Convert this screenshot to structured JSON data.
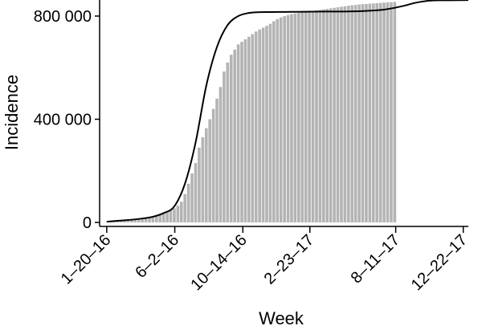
{
  "chart_data": {
    "type": "bar",
    "title": "",
    "xlabel": "Week",
    "ylabel": "Incidence",
    "xlim": [
      "2016-01-06",
      "2018-01-01"
    ],
    "ylim": [
      0,
      860000
    ],
    "x_tick_labels": [
      "1–20–16",
      "6–2–16",
      "10–14–16",
      "2–23–17",
      "8–11–17",
      "12–22–17"
    ],
    "x_tick_dates": [
      "2016-01-20",
      "2016-06-02",
      "2016-10-14",
      "2017-02-23",
      "2017-08-11",
      "2017-12-22"
    ],
    "y_tick_labels": [
      "0",
      "400 000",
      "800 000"
    ],
    "y_tick_values": [
      0,
      400000,
      800000
    ],
    "grid": false,
    "legend": "none",
    "bar_color": "#b4b4b4",
    "line_color": "#000000",
    "series": [
      {
        "type": "bar",
        "x_start": "2016-01-20",
        "x_interval_days": 7,
        "values": [
          1000,
          2000,
          3000,
          4000,
          5000,
          6000,
          7000,
          8000,
          9000,
          11000,
          13000,
          16000,
          19000,
          23000,
          27000,
          30000,
          35000,
          42000,
          50000,
          55000,
          65000,
          80000,
          110000,
          150000,
          190000,
          230000,
          290000,
          330000,
          365000,
          400000,
          440000,
          480000,
          525000,
          585000,
          620000,
          650000,
          670000,
          690000,
          700000,
          710000,
          720000,
          730000,
          740000,
          748000,
          755000,
          762000,
          770000,
          780000,
          788000,
          795000,
          800000,
          804000,
          808000,
          810000,
          812000,
          814000,
          816000,
          818000,
          820000,
          822000,
          824000,
          826000,
          828000,
          830000,
          832000,
          834000,
          836000,
          838000,
          840000,
          842000,
          843000,
          845000,
          846000,
          847000,
          848000,
          849000,
          850000,
          851000,
          852000,
          853000,
          854000,
          855000
        ]
      },
      {
        "type": "line",
        "x": [
          "2016-01-20",
          "2016-02-24",
          "2016-03-30",
          "2016-04-20",
          "2016-05-11",
          "2016-06-01",
          "2016-06-22",
          "2016-07-13",
          "2016-08-03",
          "2016-08-24",
          "2016-09-14",
          "2016-10-05",
          "2016-10-26",
          "2016-11-16",
          "2016-12-07",
          "2017-01-04",
          "2017-02-01",
          "2017-03-01",
          "2017-04-05",
          "2017-05-10",
          "2017-06-14",
          "2017-07-19",
          "2017-08-23",
          "2017-09-20",
          "2017-10-18",
          "2017-11-15",
          "2017-12-13",
          "2018-01-01"
        ],
        "y": [
          3000,
          8000,
          15000,
          22000,
          36000,
          62000,
          150000,
          310000,
          530000,
          680000,
          765000,
          800000,
          812000,
          815000,
          815500,
          816000,
          816500,
          817000,
          817500,
          818000,
          820000,
          825000,
          838000,
          852000,
          860000,
          861000,
          861500,
          862000
        ]
      }
    ]
  }
}
